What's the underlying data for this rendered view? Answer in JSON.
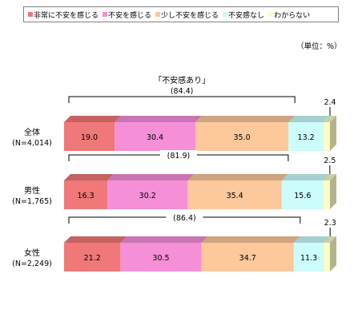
{
  "legend": [
    {
      "label": "非常に不安を感じる",
      "color": "#f07878"
    },
    {
      "label": "不安を感じる",
      "color": "#f58fd8"
    },
    {
      "label": "少し不安を感じる",
      "color": "#fcc89c"
    },
    {
      "label": "不安感なし",
      "color": "#ccfcfc"
    },
    {
      "label": "わからない",
      "color": "#fcfcc4"
    }
  ],
  "unit_label": "（単位：%）",
  "anxiety_title": "「不安感あり」",
  "chart_data": {
    "type": "bar",
    "orientation": "horizontal",
    "stacked": true,
    "xlim": [
      0,
      100
    ],
    "categories": [
      {
        "name": "全体",
        "n": "(N=4,014)"
      },
      {
        "name": "男性",
        "n": "(N=1,765)"
      },
      {
        "name": "女性",
        "n": "(N=2,249)"
      }
    ],
    "series": [
      {
        "name": "非常に不安を感じる",
        "color": "#f07878",
        "values": [
          19.0,
          16.3,
          21.2
        ]
      },
      {
        "name": "不安を感じる",
        "color": "#f58fd8",
        "values": [
          30.4,
          30.2,
          30.5
        ]
      },
      {
        "name": "少し不安を感じる",
        "color": "#fcc89c",
        "values": [
          35.0,
          35.4,
          34.7
        ]
      },
      {
        "name": "不安感なし",
        "color": "#ccfcfc",
        "values": [
          13.2,
          15.6,
          11.3
        ]
      },
      {
        "name": "わからない",
        "color": "#fcfcc4",
        "values": [
          2.4,
          2.5,
          2.3
        ]
      }
    ],
    "value_labels": [
      [
        "19.0",
        "30.4",
        "35.0",
        "13.2",
        "2.4"
      ],
      [
        "16.3",
        "30.2",
        "35.4",
        "15.6",
        "2.5"
      ],
      [
        "21.2",
        "30.5",
        "34.7",
        "11.3",
        "2.3"
      ]
    ],
    "anxiety_totals": [
      "(84.4)",
      "(81.9)",
      "(86.4)"
    ]
  }
}
